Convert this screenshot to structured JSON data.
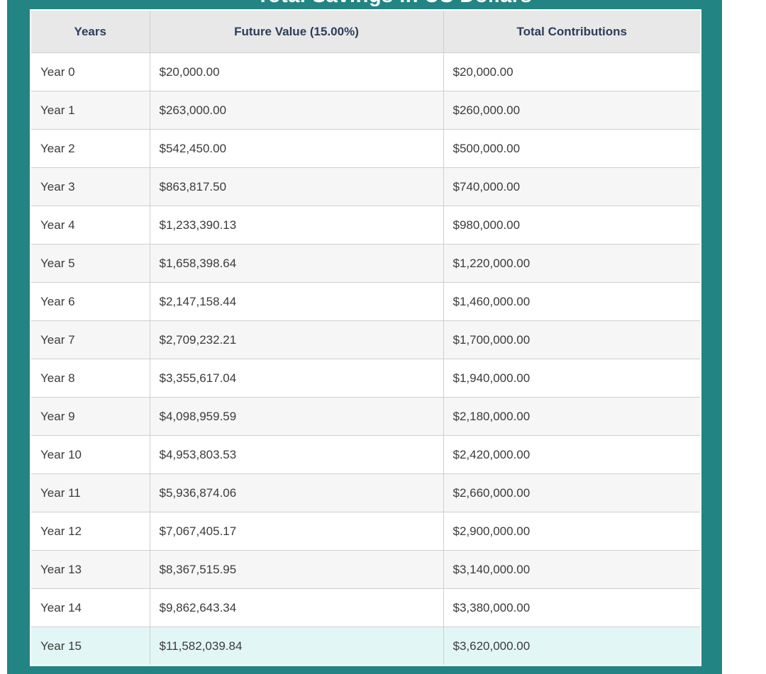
{
  "title": "Total Savings in US Dollars",
  "table": {
    "columns": [
      {
        "label": "Years"
      },
      {
        "label": "Future Value (15.00%)"
      },
      {
        "label": "Total Contributions"
      }
    ],
    "rows": [
      [
        "Year 0",
        "$20,000.00",
        "$20,000.00"
      ],
      [
        "Year 1",
        "$263,000.00",
        "$260,000.00"
      ],
      [
        "Year 2",
        "$542,450.00",
        "$500,000.00"
      ],
      [
        "Year 3",
        "$863,817.50",
        "$740,000.00"
      ],
      [
        "Year 4",
        "$1,233,390.13",
        "$980,000.00"
      ],
      [
        "Year 5",
        "$1,658,398.64",
        "$1,220,000.00"
      ],
      [
        "Year 6",
        "$2,147,158.44",
        "$1,460,000.00"
      ],
      [
        "Year 7",
        "$2,709,232.21",
        "$1,700,000.00"
      ],
      [
        "Year 8",
        "$3,355,617.04",
        "$1,940,000.00"
      ],
      [
        "Year 9",
        "$4,098,959.59",
        "$2,180,000.00"
      ],
      [
        "Year 10",
        "$4,953,803.53",
        "$2,420,000.00"
      ],
      [
        "Year 11",
        "$5,936,874.06",
        "$2,660,000.00"
      ],
      [
        "Year 12",
        "$7,067,405.17",
        "$2,900,000.00"
      ],
      [
        "Year 13",
        "$8,367,515.95",
        "$3,140,000.00"
      ],
      [
        "Year 14",
        "$9,862,643.34",
        "$3,380,000.00"
      ],
      [
        "Year 15",
        "$11,582,039.84",
        "$3,620,000.00"
      ]
    ],
    "highlighted_row_index": 15,
    "interest_rate_label": "15.00%"
  },
  "colors": {
    "teal_panel": "#228483",
    "title_text": "#ffffff",
    "header_bg": "#e8e8e8",
    "header_text": "#2c3d5a",
    "body_text": "#3b3b3b",
    "cell_border": "#cfcfcf",
    "row_alt_bg": "#f6f6f6",
    "highlight_row_bg": "#e2f7f5",
    "table_outer_border": "#ffffff"
  }
}
